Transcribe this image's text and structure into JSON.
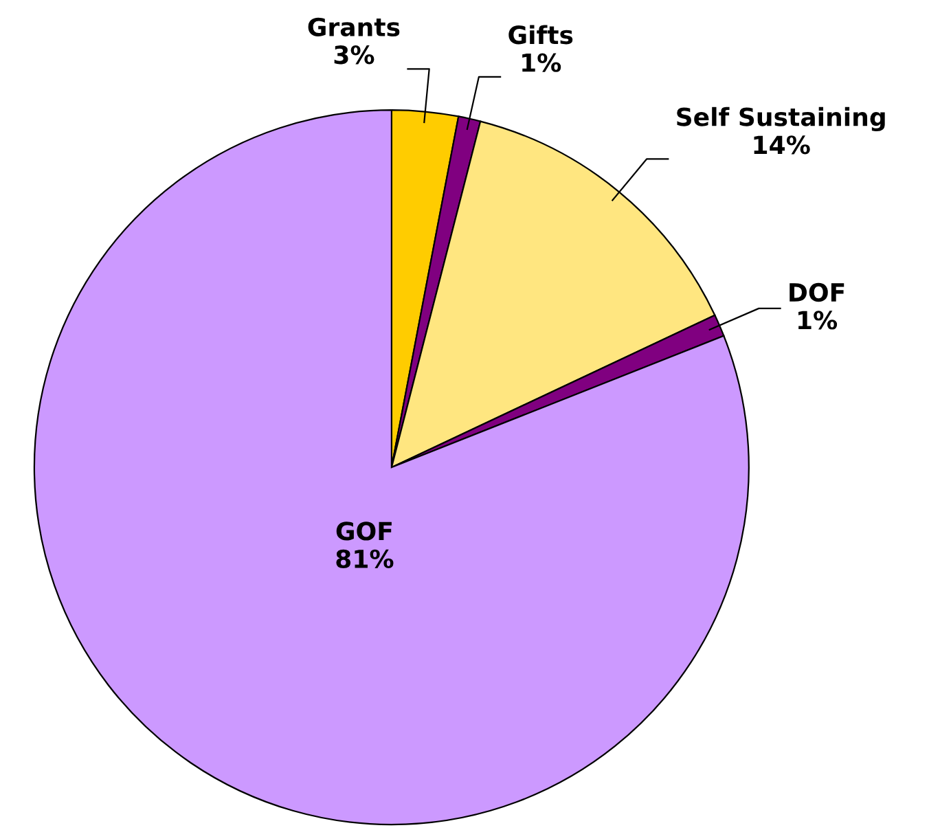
{
  "chart_data": {
    "type": "pie",
    "categories": [
      "Grants",
      "Gifts",
      "Self Sustaining",
      "DOF",
      "GOF"
    ],
    "values": [
      3,
      1,
      14,
      1,
      81
    ],
    "value_labels": [
      "3%",
      "1%",
      "14%",
      "1%",
      "81%"
    ],
    "colors": [
      "#ffcc00",
      "#800080",
      "#ffe680",
      "#800080",
      "#cc99ff"
    ]
  }
}
